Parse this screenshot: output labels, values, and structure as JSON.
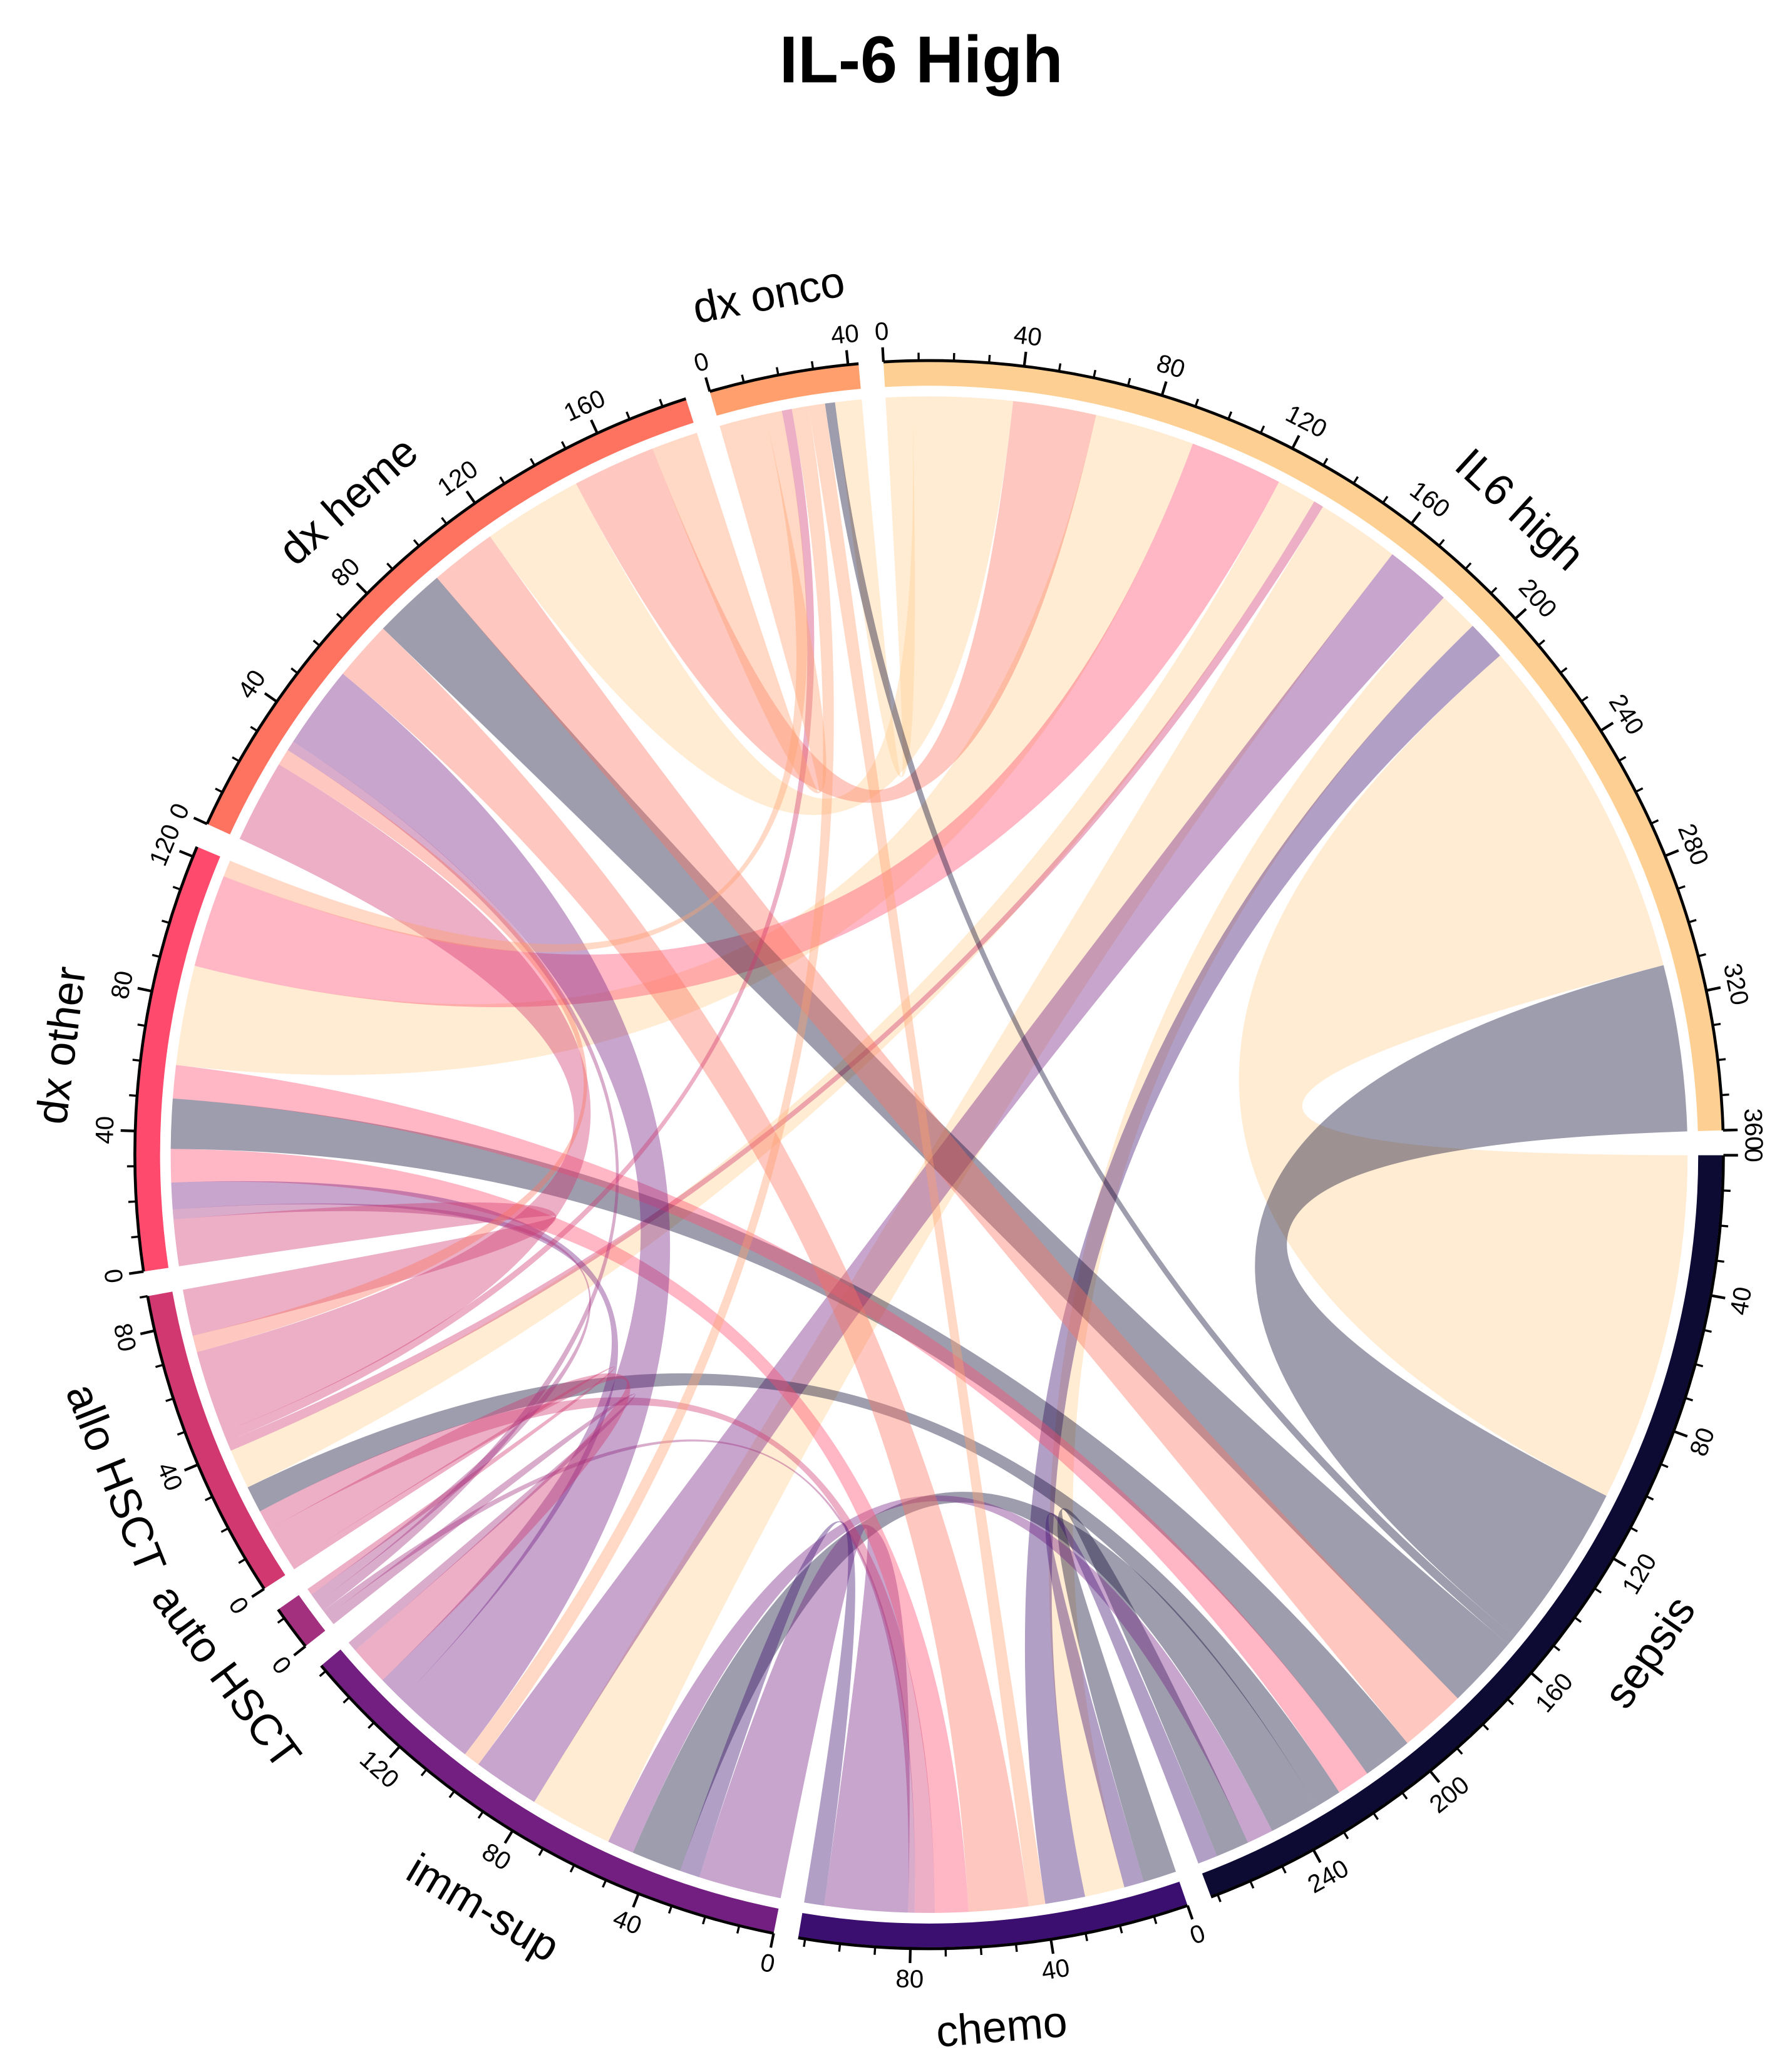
{
  "chart_data": {
    "type": "chord",
    "title": "IL-6 High",
    "major_tick_interval": 40,
    "minor_tick_interval": 10,
    "segments": [
      {
        "name": "IL6 high",
        "total": 360,
        "color": "#fecf92"
      },
      {
        "name": "sepsis",
        "total": 272,
        "color": "#0d0a33"
      },
      {
        "name": "chemo",
        "total": 112,
        "color": "#3b0f70"
      },
      {
        "name": "imm-sup",
        "total": 152,
        "color": "#721f81"
      },
      {
        "name": "auto HSCT",
        "total": 13,
        "color": "#a3307e"
      },
      {
        "name": "allo HSCT",
        "total": 90,
        "color": "#d0386f"
      },
      {
        "name": "dx other",
        "total": 123,
        "color": "#fe4a6d"
      },
      {
        "name": "dx heme",
        "total": 187,
        "color": "#fd7360"
      },
      {
        "name": "dx onco",
        "total": 43,
        "color": "#fe9f6d"
      }
    ],
    "links": [
      {
        "a": "IL6 high",
        "b": "sepsis",
        "value": 105,
        "color_of": "IL6 high"
      },
      {
        "a": "IL6 high",
        "b": "sepsis",
        "value": 50,
        "color_of": "sepsis"
      },
      {
        "a": "IL6 high",
        "b": "dx heme",
        "value": 30,
        "color_of": "IL6 high"
      },
      {
        "a": "IL6 high",
        "b": "dx other",
        "value": 30,
        "color_of": "IL6 high"
      },
      {
        "a": "IL6 high",
        "b": "allo HSCT",
        "value": 12,
        "color_of": "IL6 high"
      },
      {
        "a": "IL6 high",
        "b": "imm-sup",
        "value": 25,
        "color_of": "IL6 high"
      },
      {
        "a": "IL6 high",
        "b": "chemo",
        "value": 12,
        "color_of": "IL6 high"
      },
      {
        "a": "IL6 high",
        "b": "dx onco",
        "value": 8,
        "color_of": "IL6 high"
      },
      {
        "a": "IL6 high",
        "b": "dx heme",
        "value": 25,
        "color_of": "dx heme"
      },
      {
        "a": "IL6 high",
        "b": "dx other",
        "value": 28,
        "color_of": "dx other"
      },
      {
        "a": "IL6 high",
        "b": "imm-sup",
        "value": 20,
        "color_of": "imm-sup"
      },
      {
        "a": "IL6 high",
        "b": "chemo",
        "value": 12,
        "color_of": "chemo"
      },
      {
        "a": "IL6 high",
        "b": "allo HSCT",
        "value": 3,
        "color_of": "allo HSCT"
      },
      {
        "a": "sepsis",
        "b": "dx heme",
        "value": 22,
        "color_of": "sepsis"
      },
      {
        "a": "sepsis",
        "b": "dx other",
        "value": 15,
        "color_of": "sepsis"
      },
      {
        "a": "sepsis",
        "b": "allo HSCT",
        "value": 8,
        "color_of": "sepsis"
      },
      {
        "a": "sepsis",
        "b": "imm-sup",
        "value": 15,
        "color_of": "sepsis"
      },
      {
        "a": "sepsis",
        "b": "chemo",
        "value": 10,
        "color_of": "sepsis"
      },
      {
        "a": "sepsis",
        "b": "dx onco",
        "value": 3,
        "color_of": "sepsis"
      },
      {
        "a": "sepsis",
        "b": "dx heme",
        "value": 20,
        "color_of": "dx heme"
      },
      {
        "a": "sepsis",
        "b": "dx other",
        "value": 10,
        "color_of": "dx other"
      },
      {
        "a": "sepsis",
        "b": "imm-sup",
        "value": 8,
        "color_of": "imm-sup"
      },
      {
        "a": "sepsis",
        "b": "chemo",
        "value": 6,
        "color_of": "chemo"
      },
      {
        "a": "chemo",
        "b": "imm-sup",
        "value": 25,
        "color_of": "imm-sup"
      },
      {
        "a": "chemo",
        "b": "dx heme",
        "value": 18,
        "color_of": "dx heme"
      },
      {
        "a": "chemo",
        "b": "dx other",
        "value": 10,
        "color_of": "dx other"
      },
      {
        "a": "chemo",
        "b": "allo HSCT",
        "value": 6,
        "color_of": "allo HSCT"
      },
      {
        "a": "chemo",
        "b": "dx onco",
        "value": 5,
        "color_of": "dx onco"
      },
      {
        "a": "chemo",
        "b": "auto HSCT",
        "value": 2,
        "color_of": "auto HSCT"
      },
      {
        "a": "chemo",
        "b": "imm-sup",
        "value": 6,
        "color_of": "chemo"
      },
      {
        "a": "imm-sup",
        "b": "dx heme",
        "value": 25,
        "color_of": "imm-sup"
      },
      {
        "a": "imm-sup",
        "b": "dx other",
        "value": 8,
        "color_of": "imm-sup"
      },
      {
        "a": "imm-sup",
        "b": "allo HSCT",
        "value": 12,
        "color_of": "allo HSCT"
      },
      {
        "a": "imm-sup",
        "b": "auto HSCT",
        "value": 3,
        "color_of": "auto HSCT"
      },
      {
        "a": "imm-sup",
        "b": "dx onco",
        "value": 5,
        "color_of": "dx onco"
      },
      {
        "a": "auto HSCT",
        "b": "allo HSCT",
        "value": 2,
        "color_of": "allo HSCT"
      },
      {
        "a": "auto HSCT",
        "b": "dx heme",
        "value": 3,
        "color_of": "auto HSCT"
      },
      {
        "a": "auto HSCT",
        "b": "dx other",
        "value": 3,
        "color_of": "auto HSCT"
      },
      {
        "a": "allo HSCT",
        "b": "dx heme",
        "value": 25,
        "color_of": "allo HSCT"
      },
      {
        "a": "allo HSCT",
        "b": "dx other",
        "value": 14,
        "color_of": "allo HSCT"
      },
      {
        "a": "allo HSCT",
        "b": "dx onco",
        "value": 3,
        "color_of": "allo HSCT"
      },
      {
        "a": "allo HSCT",
        "b": "dx heme",
        "value": 5,
        "color_of": "dx heme"
      },
      {
        "a": "dx other",
        "b": "dx onco",
        "value": 5,
        "color_of": "dx onco"
      },
      {
        "a": "dx heme",
        "b": "dx onco",
        "value": 14,
        "color_of": "dx onco"
      }
    ]
  }
}
